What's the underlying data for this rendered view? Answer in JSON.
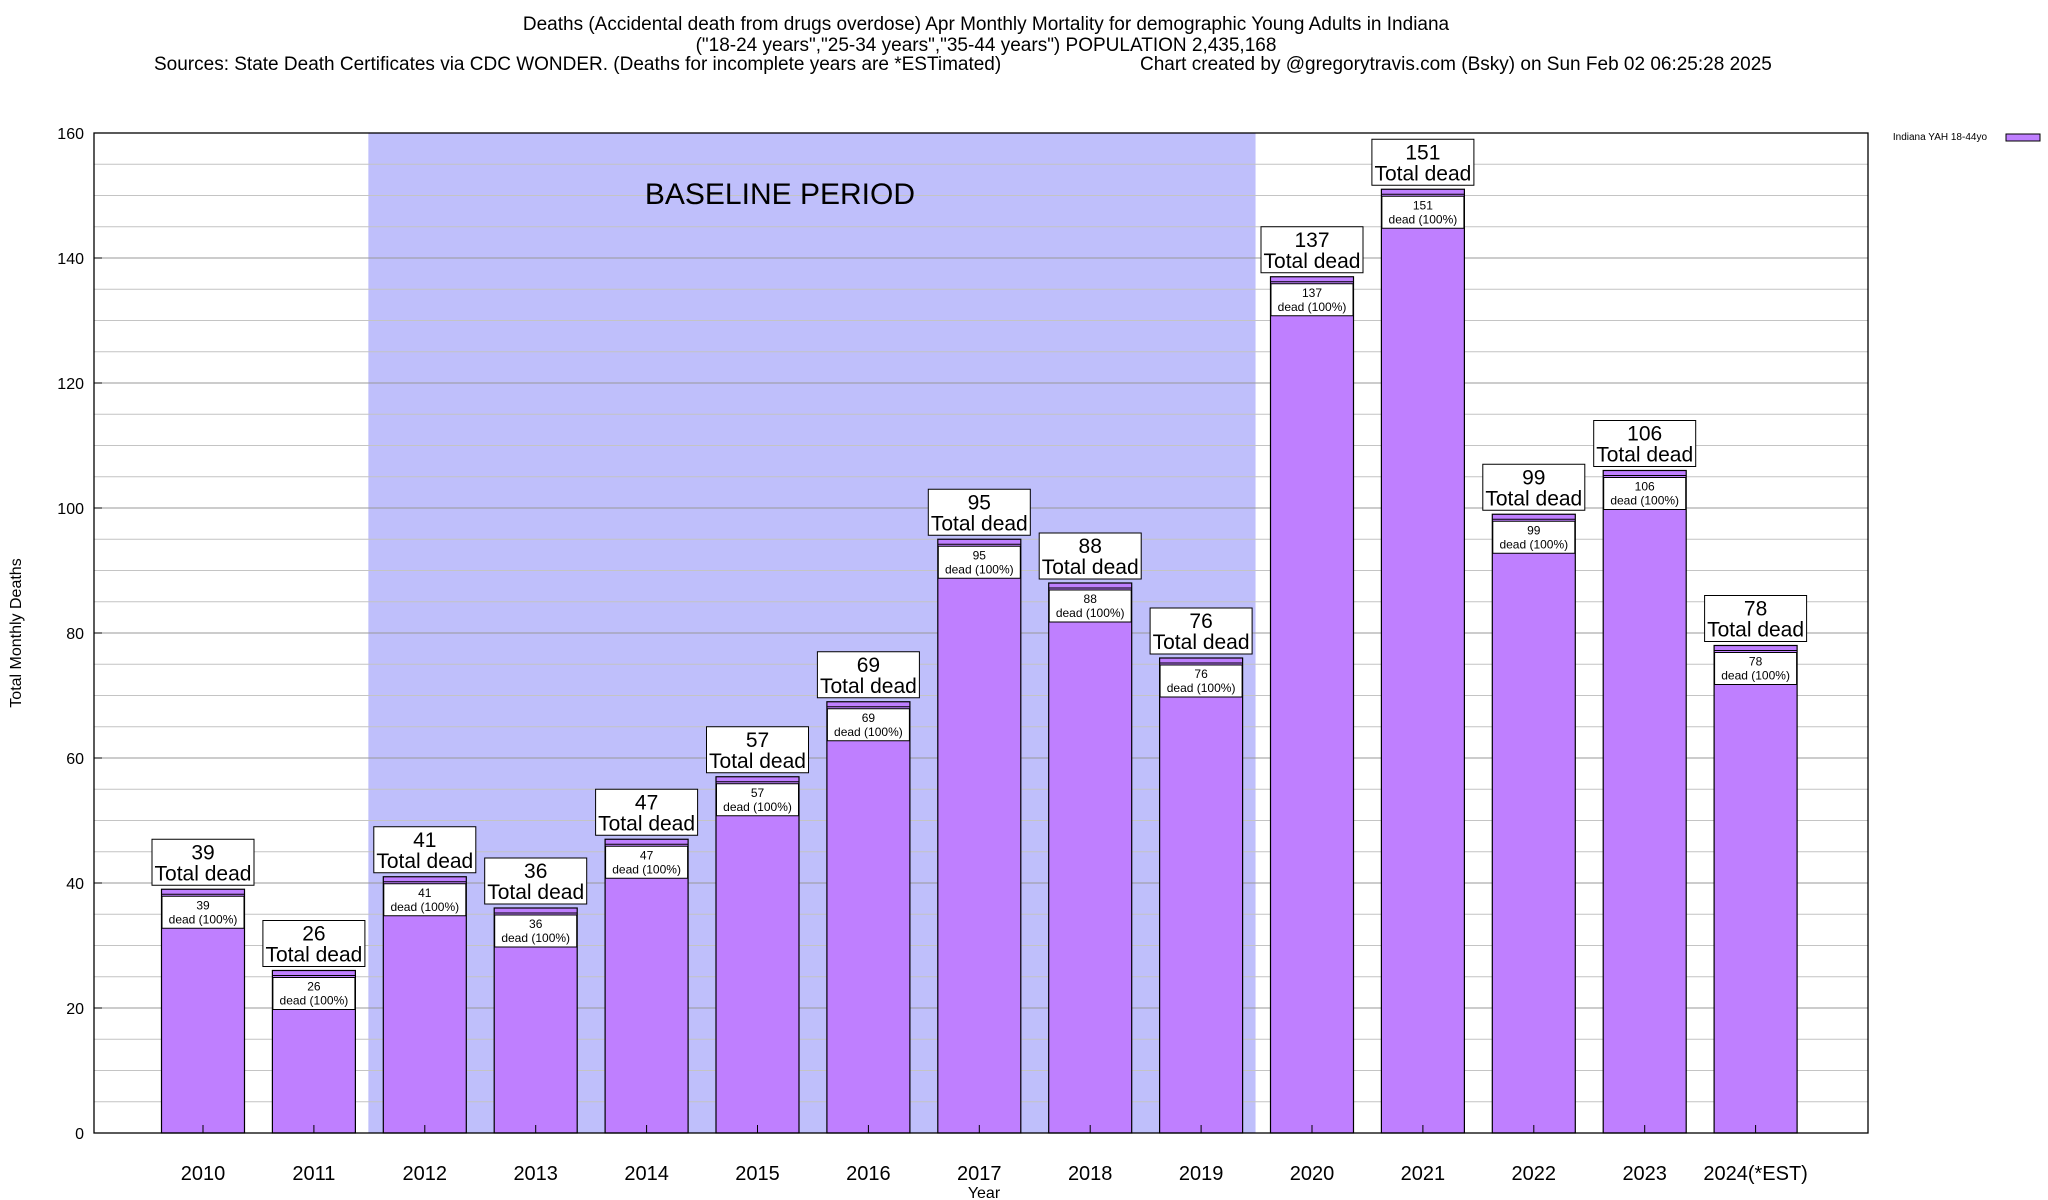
{
  "header": {
    "title_line1": "Deaths (Accidental death from drugs overdose) Apr Monthly Mortality for demographic Young Adults in Indiana",
    "title_line2": "(\"18-24 years\",\"25-34 years\",\"35-44 years\") POPULATION 2,435,168",
    "sources": "Sources: State Death Certificates via CDC WONDER. (Deaths for incomplete years are *ESTimated)",
    "credit": "Chart created by @gregorytravis.com (Bsky) on Sun Feb 02 06:25:28 2025"
  },
  "chart_data": {
    "type": "bar",
    "title": "Deaths (Accidental death from drugs overdose) Apr Monthly Mortality for demographic Young Adults in Indiana",
    "xlabel": "Year",
    "ylabel": "Total Monthly Deaths",
    "ylim": [
      0,
      160
    ],
    "yticks": [
      0,
      20,
      40,
      60,
      80,
      100,
      120,
      140,
      160
    ],
    "categories": [
      "2010",
      "2011",
      "2012",
      "2013",
      "2014",
      "2015",
      "2016",
      "2017",
      "2018",
      "2019",
      "2020",
      "2021",
      "2022",
      "2023",
      "2024(*EST)"
    ],
    "series": [
      {
        "name": "Indiana YAH 18-44yo",
        "color": "#bf7fff",
        "values": [
          39,
          26,
          41,
          36,
          47,
          57,
          69,
          95,
          88,
          76,
          137,
          151,
          99,
          106,
          78
        ]
      }
    ],
    "total_label_suffix": "Total dead",
    "inner_label_suffix": "dead (100%)",
    "baseline_period": {
      "label": "BASELINE PERIOD",
      "start_category": "2012",
      "end_category": "2019",
      "color": "#bfbffb"
    },
    "grid": true,
    "legend_position": "top-right"
  }
}
